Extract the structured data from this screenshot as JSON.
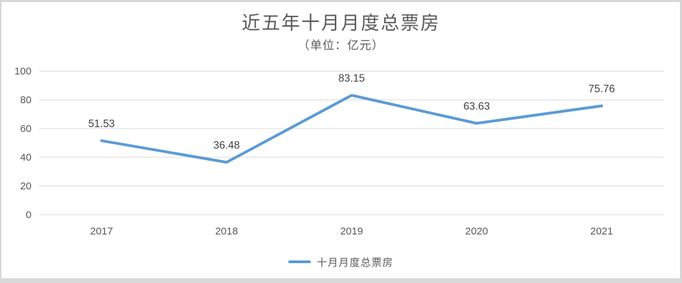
{
  "chart_data": {
    "type": "line",
    "title": "近五年十月月度总票房",
    "subtitle": "（单位：亿元）",
    "categories": [
      "2017",
      "2018",
      "2019",
      "2020",
      "2021"
    ],
    "series": [
      {
        "name": "十月月度总票房",
        "values": [
          51.53,
          36.48,
          83.15,
          63.63,
          75.76
        ],
        "color": "#5B9BD5"
      }
    ],
    "data_labels": [
      "51.53",
      "36.48",
      "83.15",
      "63.63",
      "75.76"
    ],
    "xlabel": "",
    "ylabel": "",
    "ylim": [
      0,
      100
    ],
    "ytick_interval": 20,
    "ytick_labels": [
      "0",
      "20",
      "40",
      "60",
      "80",
      "100"
    ],
    "grid": true,
    "legend_position": "bottom",
    "colors": {
      "gridline": "#d9d9d9",
      "tick_label": "#595959",
      "data_label": "#404040",
      "title": "#595959",
      "frame_edge": "#d6d6d6"
    }
  }
}
